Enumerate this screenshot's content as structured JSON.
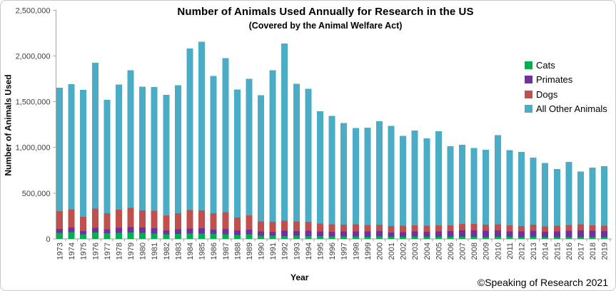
{
  "header": {
    "title": "Number of Animals Used Annually for Research in the US",
    "subtitle": "(Covered by the Animal Welfare Act)"
  },
  "footer": {
    "credit": "©Speaking of Research 2021"
  },
  "axes": {
    "y_title": "Number of Animals Used",
    "x_title": "Year",
    "y_tick_labels": [
      "0",
      "500,000",
      "1,000,000",
      "1,500,000",
      "2,000,000",
      "2,500,000"
    ],
    "y_tick_values": [
      0,
      500000,
      1000000,
      1500000,
      2000000,
      2500000
    ]
  },
  "colors": {
    "cats": "#00B050",
    "primates": "#7030A0",
    "dogs": "#C0504D",
    "all_other_animals": "#4BACC6",
    "axis_line": "#A6A6A6",
    "tick_label": "#404040"
  },
  "chart_data": {
    "type": "bar",
    "stacked": true,
    "title": "Number of Animals Used Annually for Research in the US",
    "subtitle": "(Covered by the Animal Welfare Act)",
    "xlabel": "Year",
    "ylabel": "Number of Animals Used",
    "ylim": [
      0,
      2500000
    ],
    "grid": false,
    "legend_position": "right",
    "categories": [
      1973,
      1974,
      1975,
      1976,
      1977,
      1978,
      1979,
      1980,
      1981,
      1982,
      1983,
      1984,
      1985,
      1986,
      1987,
      1988,
      1989,
      1990,
      1991,
      1992,
      1993,
      1994,
      1995,
      1996,
      1997,
      1998,
      1999,
      2000,
      2001,
      2002,
      2003,
      2004,
      2005,
      2006,
      2007,
      2008,
      2009,
      2010,
      2011,
      2012,
      2013,
      2014,
      2015,
      2016,
      2017,
      2018,
      2019
    ],
    "series": [
      {
        "name": "Cats",
        "color": "#00B050",
        "values": [
          66000,
          74000,
          51000,
          70000,
          64000,
          66000,
          69000,
          68000,
          59000,
          49000,
          53000,
          57000,
          59000,
          54000,
          50000,
          42000,
          51000,
          34000,
          35000,
          33000,
          34000,
          33000,
          30000,
          26000,
          26000,
          26000,
          23000,
          26000,
          23000,
          24000,
          26000,
          24000,
          23000,
          22000,
          23000,
          23000,
          21000,
          22000,
          22000,
          20000,
          24000,
          21000,
          20000,
          19000,
          19000,
          19000,
          18000
        ]
      },
      {
        "name": "Primates",
        "color": "#7030A0",
        "values": [
          42000,
          51000,
          36000,
          52000,
          42000,
          55000,
          59000,
          56000,
          58000,
          46000,
          54000,
          55000,
          57000,
          49000,
          61000,
          52000,
          52000,
          47000,
          43000,
          55000,
          50000,
          55000,
          50000,
          52000,
          56000,
          57000,
          57000,
          58000,
          49000,
          52000,
          54000,
          55000,
          58000,
          62000,
          70000,
          70000,
          69000,
          71000,
          61000,
          62000,
          64000,
          58000,
          62000,
          71000,
          76000,
          71000,
          68000
        ]
      },
      {
        "name": "Dogs",
        "color": "#C0504D",
        "values": [
          195000,
          199000,
          154000,
          210000,
          176000,
          197000,
          211000,
          188000,
          189000,
          161000,
          175000,
          202000,
          195000,
          176000,
          180000,
          140000,
          156000,
          110000,
          108000,
          110000,
          106000,
          101000,
          89000,
          82000,
          75000,
          76000,
          71000,
          70000,
          70000,
          68000,
          68000,
          65000,
          66000,
          66000,
          72000,
          72000,
          66000,
          65000,
          65000,
          59000,
          67000,
          59000,
          61000,
          61000,
          65000,
          59000,
          58000
        ]
      },
      {
        "name": "All Other Animals",
        "color": "#4BACC6",
        "values": [
          1350000,
          1369000,
          1389000,
          1593000,
          1238000,
          1370000,
          1506000,
          1353000,
          1354000,
          1319000,
          1398000,
          1766000,
          1844000,
          1501000,
          1684000,
          1399000,
          1491000,
          1379000,
          1659000,
          1937000,
          1505000,
          1451000,
          1226000,
          1185000,
          1110000,
          1053000,
          1064000,
          1131000,
          1095000,
          981000,
          1037000,
          956000,
          1031000,
          865000,
          863000,
          830000,
          819000,
          975000,
          822000,
          809000,
          735000,
          692000,
          622000,
          689000,
          575000,
          631000,
          653000
        ]
      }
    ],
    "totals": [
      1653000,
      1693000,
      1630000,
      1925000,
      1520000,
      1688000,
      1845000,
      1665000,
      1660000,
      1575000,
      1680000,
      2080000,
      2155000,
      1780000,
      1975000,
      1633000,
      1750000,
      1570000,
      1845000,
      2135000,
      1695000,
      1640000,
      1395000,
      1345000,
      1267000,
      1212000,
      1215000,
      1285000,
      1237000,
      1125000,
      1185000,
      1100000,
      1178000,
      1015000,
      1028000,
      995000,
      975000,
      1133000,
      970000,
      950000,
      890000,
      830000,
      765000,
      840000,
      735000,
      780000,
      797000
    ]
  }
}
